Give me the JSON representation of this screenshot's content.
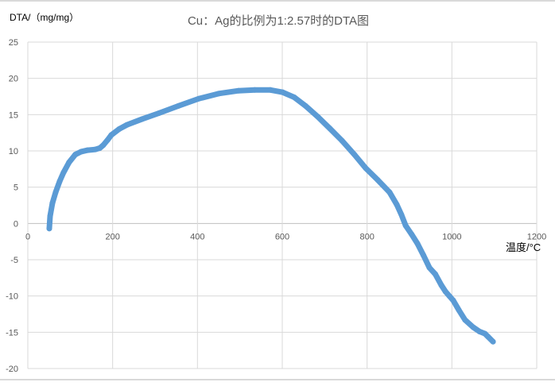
{
  "chart_data": {
    "type": "scatter",
    "title": "Cu：Ag的比例为1:2.57时的DTA图",
    "xlabel": "温度/°C",
    "ylabel": "DTA/（mg/mg）",
    "xlim": [
      0,
      1200
    ],
    "ylim": [
      -20,
      25
    ],
    "xticks": [
      0,
      200,
      400,
      600,
      800,
      1000,
      1200
    ],
    "yticks": [
      -20,
      -15,
      -10,
      -5,
      0,
      5,
      10,
      15,
      20,
      25
    ],
    "grid": true,
    "legend": "none",
    "color": "#5b9bd5",
    "series": [
      {
        "x": [
          50.6,
          52.5,
          58,
          65.6,
          75,
          84,
          97,
          112,
          126,
          141,
          159,
          170,
          178,
          188,
          197,
          215,
          234,
          270,
          309,
          355,
          403,
          450,
          497,
          535,
          572,
          600,
          628,
          655,
          684,
          712,
          741,
          770,
          797,
          825,
          853,
          870,
          881,
          891,
          905,
          919,
          933,
          947,
          961,
          975,
          985,
          994,
          1003,
          1017,
          1031,
          1050,
          1065,
          1078,
          1085,
          1097
        ],
        "y": [
          -0.7,
          1.0,
          2.8,
          4.3,
          5.8,
          7.0,
          8.4,
          9.5,
          9.9,
          10.1,
          10.2,
          10.4,
          10.8,
          11.5,
          12.2,
          13.0,
          13.6,
          14.4,
          15.2,
          16.2,
          17.2,
          17.9,
          18.3,
          18.4,
          18.4,
          18.1,
          17.4,
          16.2,
          14.7,
          13.1,
          11.4,
          9.5,
          7.6,
          6.0,
          4.3,
          2.6,
          1.2,
          -0.3,
          -1.5,
          -2.8,
          -4.4,
          -6.1,
          -7.0,
          -8.5,
          -9.4,
          -10.0,
          -10.6,
          -12.0,
          -13.3,
          -14.3,
          -14.9,
          -15.2,
          -15.6,
          -16.3
        ]
      }
    ]
  }
}
